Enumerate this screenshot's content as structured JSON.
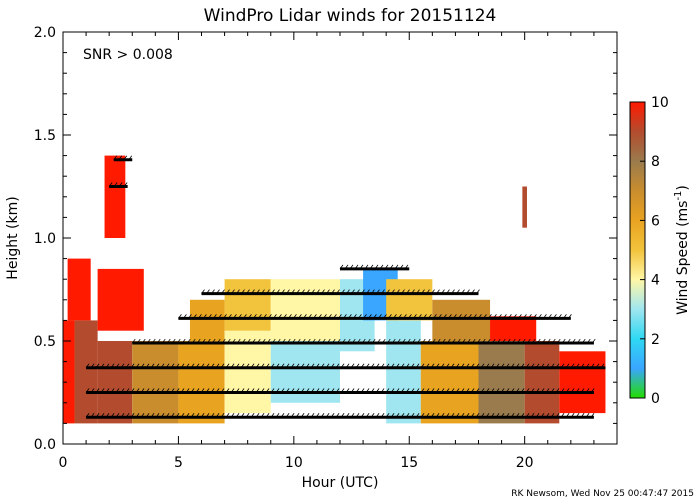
{
  "chart_data": {
    "type": "heatmap",
    "title": "WindPro Lidar winds for 20151124",
    "xlabel": "Hour (UTC)",
    "ylabel": "Height (km)",
    "xlim": [
      0,
      24
    ],
    "ylim": [
      0.0,
      2.0
    ],
    "x_ticks": [
      "0",
      "5",
      "10",
      "15",
      "20"
    ],
    "y_ticks": [
      "0.0",
      "0.5",
      "1.0",
      "1.5",
      "2.0"
    ],
    "annotation": "SNR > 0.008",
    "colorbar": {
      "label_main": "Wind Speed (ms",
      "label_sup": "-1",
      "label_close": ")",
      "range": [
        0,
        10
      ],
      "ticks": [
        "0",
        "2",
        "4",
        "6",
        "8",
        "10"
      ],
      "colors": [
        "#22dd00",
        "#3aa6ff",
        "#2fd8f2",
        "#9fe6f0",
        "#fff7a6",
        "#f2c33c",
        "#e8a321",
        "#c98d2e",
        "#9a7b4d",
        "#b34c2e",
        "#ff1a00"
      ]
    },
    "credit": "RK Newsom, Wed Nov 25 00:47:47 2015",
    "regions": [
      {
        "x": [
          0.0,
          0.5
        ],
        "y": [
          0.1,
          0.6
        ],
        "speed": 10
      },
      {
        "x": [
          0.5,
          1.5
        ],
        "y": [
          0.1,
          0.6
        ],
        "speed": 9
      },
      {
        "x": [
          1.5,
          3.0
        ],
        "y": [
          0.1,
          0.5
        ],
        "speed": 8.5
      },
      {
        "x": [
          0.2,
          1.2
        ],
        "y": [
          0.6,
          0.9
        ],
        "speed": 10
      },
      {
        "x": [
          1.5,
          3.5
        ],
        "y": [
          0.55,
          0.85
        ],
        "speed": 9.5
      },
      {
        "x": [
          1.8,
          2.7
        ],
        "y": [
          1.0,
          1.4
        ],
        "speed": 10
      },
      {
        "x": [
          3.0,
          5.0
        ],
        "y": [
          0.1,
          0.5
        ],
        "speed": 7
      },
      {
        "x": [
          5.0,
          7.0
        ],
        "y": [
          0.1,
          0.5
        ],
        "speed": 6
      },
      {
        "x": [
          5.5,
          7.0
        ],
        "y": [
          0.5,
          0.7
        ],
        "speed": 5.5
      },
      {
        "x": [
          7.0,
          9.0
        ],
        "y": [
          0.15,
          0.55
        ],
        "speed": 4
      },
      {
        "x": [
          7.0,
          9.0
        ],
        "y": [
          0.55,
          0.8
        ],
        "speed": 4.5
      },
      {
        "x": [
          9.0,
          12.0
        ],
        "y": [
          0.2,
          0.5
        ],
        "speed": 3
      },
      {
        "x": [
          9.0,
          12.0
        ],
        "y": [
          0.5,
          0.8
        ],
        "speed": 3.5
      },
      {
        "x": [
          12.0,
          13.5
        ],
        "y": [
          0.45,
          0.8
        ],
        "speed": 2.8
      },
      {
        "x": [
          13.0,
          14.5
        ],
        "y": [
          0.6,
          0.85
        ],
        "speed": 0.8
      },
      {
        "x": [
          14.0,
          15.5
        ],
        "y": [
          0.1,
          0.6
        ],
        "speed": 3
      },
      {
        "x": [
          14.0,
          16.0
        ],
        "y": [
          0.6,
          0.8
        ],
        "speed": 4.5
      },
      {
        "x": [
          15.5,
          18.0
        ],
        "y": [
          0.1,
          0.5
        ],
        "speed": 6
      },
      {
        "x": [
          16.0,
          18.5
        ],
        "y": [
          0.5,
          0.7
        ],
        "speed": 7
      },
      {
        "x": [
          18.0,
          20.0
        ],
        "y": [
          0.1,
          0.5
        ],
        "speed": 8
      },
      {
        "x": [
          18.5,
          20.5
        ],
        "y": [
          0.5,
          0.62
        ],
        "speed": 9.5
      },
      {
        "x": [
          20.0,
          21.5
        ],
        "y": [
          0.1,
          0.5
        ],
        "speed": 9
      },
      {
        "x": [
          21.5,
          23.5
        ],
        "y": [
          0.15,
          0.45
        ],
        "speed": 10
      },
      {
        "x": [
          19.9,
          20.1
        ],
        "y": [
          1.05,
          1.25
        ],
        "speed": 9
      }
    ],
    "barb_rows": [
      {
        "height": 0.13,
        "x": [
          1.0,
          23.0
        ]
      },
      {
        "height": 0.25,
        "x": [
          1.0,
          23.0
        ]
      },
      {
        "height": 0.37,
        "x": [
          1.0,
          23.5
        ]
      },
      {
        "height": 0.49,
        "x": [
          3.0,
          23.0
        ]
      },
      {
        "height": 0.61,
        "x": [
          5.0,
          22.0
        ]
      },
      {
        "height": 0.73,
        "x": [
          6.0,
          18.0
        ]
      },
      {
        "height": 0.85,
        "x": [
          12.0,
          15.0
        ]
      },
      {
        "height": 1.25,
        "x": [
          2.0,
          2.8
        ]
      },
      {
        "height": 1.38,
        "x": [
          2.2,
          3.0
        ]
      }
    ]
  }
}
